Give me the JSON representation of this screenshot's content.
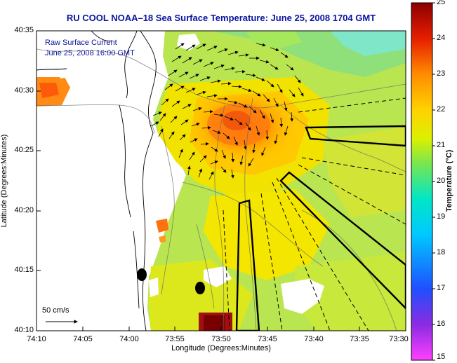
{
  "title": "RU COOL  NOAA–18  Sea Surface Temperature:  June 25, 2008 1704 GMT",
  "annotations": {
    "line1": "Raw Surface Current",
    "line2": "June 25, 2008 16:00 GMT"
  },
  "axes": {
    "ylabel": "Latitude (Degrees:Minutes)",
    "xlabel": "Longitude (Degrees:Minutes)",
    "yticks": [
      "40:35",
      "40:30",
      "40:25",
      "40:20",
      "40:15",
      "40:10"
    ],
    "xticks": [
      "74:10",
      "74:05",
      "74:00",
      "73:55",
      "73:50",
      "73:45",
      "73:40",
      "73:35",
      "73:30"
    ]
  },
  "colorbar": {
    "label": "Temperature (°C)",
    "ticks": [
      "25",
      "24",
      "23",
      "22",
      "21",
      "20",
      "19",
      "18",
      "17",
      "16",
      "15"
    ],
    "min": 15,
    "max": 25
  },
  "scale": {
    "label": "50 cm/s"
  },
  "colors": {
    "title": "#0a14a0",
    "annotation": "#0a14a0"
  }
}
